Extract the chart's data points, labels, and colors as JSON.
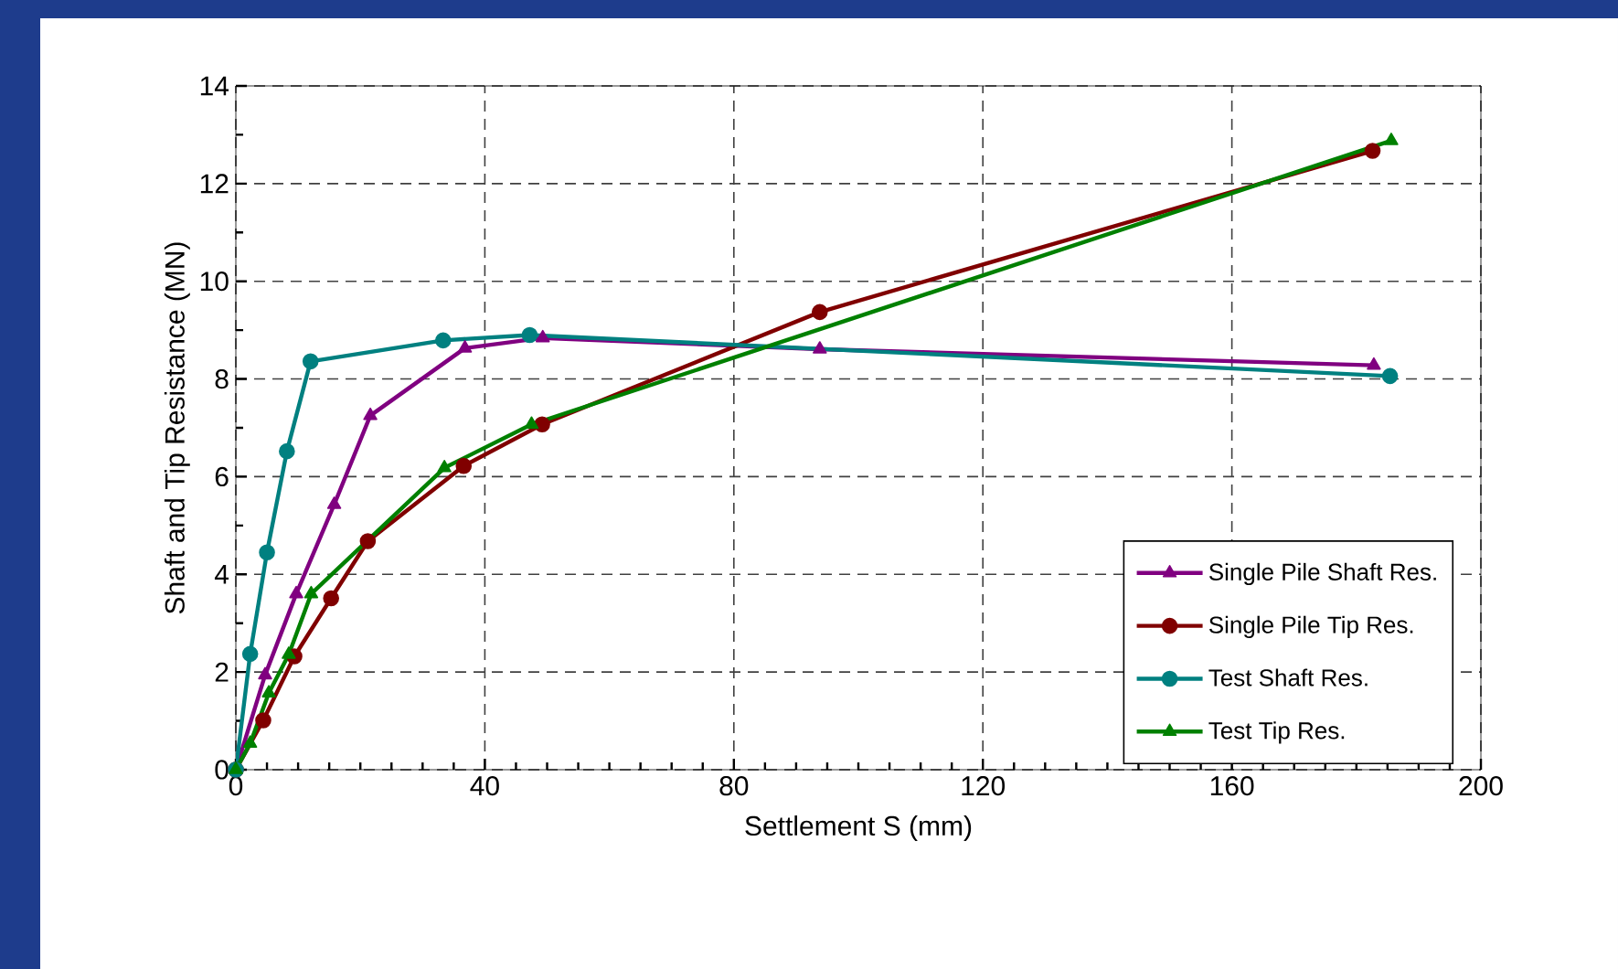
{
  "chart_data": {
    "type": "line",
    "xlabel": "Settlement S (mm)",
    "ylabel": "Shaft and Tip Resistance (MN)",
    "xlim": [
      0,
      200
    ],
    "ylim": [
      0,
      14
    ],
    "xticks": [
      0,
      40,
      80,
      120,
      160,
      200
    ],
    "yticks": [
      0,
      2,
      4,
      6,
      8,
      10,
      12,
      14
    ],
    "grid": true,
    "legend": "bottom right",
    "line_style": "solid",
    "series": [
      {
        "name": "Single Pile Shaft Res.",
        "color": "#800080",
        "marker": "triangle",
        "x": [
          0,
          4.7,
          9.7,
          15.8,
          21.6,
          36.8,
          49.3,
          93.8,
          182.8
        ],
        "values": [
          0,
          1.94,
          3.6,
          5.43,
          7.25,
          8.63,
          8.84,
          8.61,
          8.28
        ]
      },
      {
        "name": "Single Pile Tip Res.",
        "color": "#800000",
        "marker": "circle",
        "x": [
          0,
          4.4,
          9.4,
          15.3,
          21.2,
          36.6,
          49.2,
          93.8,
          182.6
        ],
        "values": [
          0,
          1.01,
          2.32,
          3.51,
          4.68,
          6.22,
          7.07,
          9.37,
          12.67
        ]
      },
      {
        "name": "Test Shaft Res.",
        "color": "#008080",
        "marker": "circle",
        "x": [
          0,
          2.3,
          5.0,
          8.2,
          12.0,
          33.3,
          47.2,
          185.4
        ],
        "values": [
          0,
          2.37,
          4.45,
          6.52,
          8.36,
          8.79,
          8.9,
          8.06
        ]
      },
      {
        "name": "Test Tip Res.",
        "color": "#008000",
        "marker": "triangle",
        "x": [
          0,
          2.3,
          5.3,
          8.5,
          12.1,
          33.5,
          47.5,
          185.6
        ],
        "values": [
          0,
          0.54,
          1.57,
          2.36,
          3.6,
          6.18,
          7.07,
          12.88
        ]
      }
    ]
  }
}
